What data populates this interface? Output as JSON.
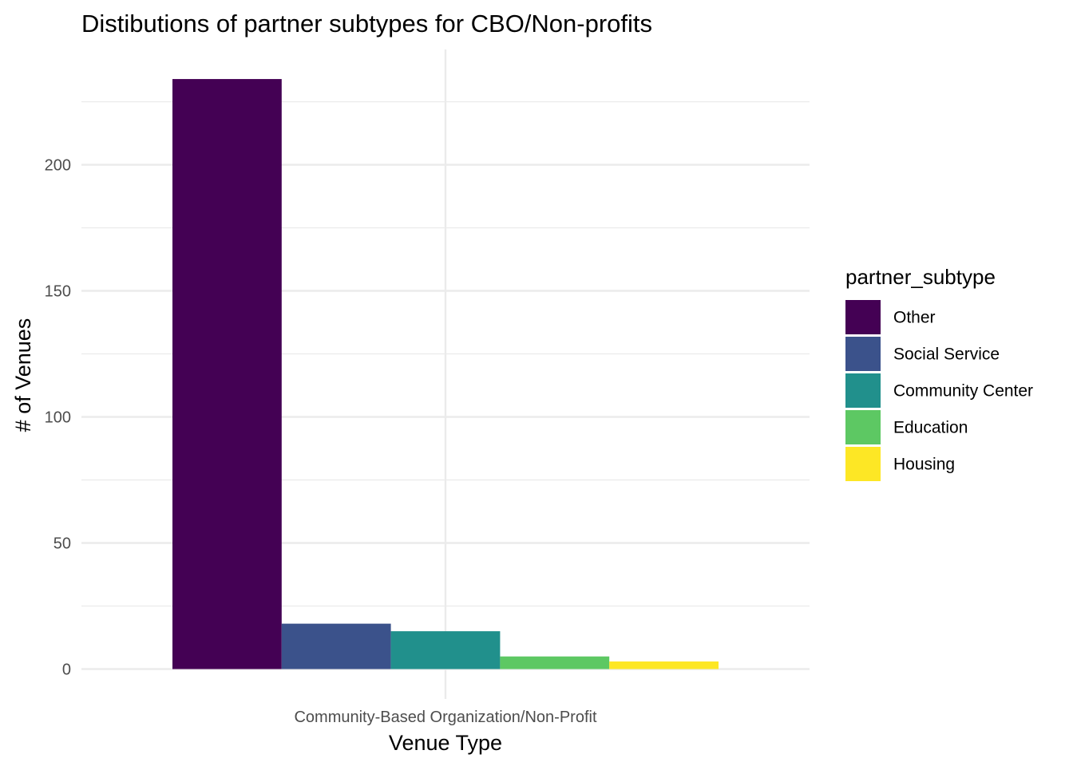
{
  "chart_data": {
    "type": "bar",
    "title": "Distibutions of partner subtypes for CBO/Non-profits",
    "xlabel": "Venue Type",
    "ylabel": "# of Venues",
    "categories": [
      "Community-Based Organization/Non-Profit"
    ],
    "series": [
      {
        "name": "Other",
        "values": [
          234
        ],
        "color": "#440154"
      },
      {
        "name": "Social Service",
        "values": [
          18
        ],
        "color": "#3B528B"
      },
      {
        "name": "Community Center",
        "values": [
          15
        ],
        "color": "#21908C"
      },
      {
        "name": "Education",
        "values": [
          5
        ],
        "color": "#5DC863"
      },
      {
        "name": "Housing",
        "values": [
          3
        ],
        "color": "#FDE725"
      }
    ],
    "ylim": [
      0,
      240
    ],
    "yticks": [
      0,
      50,
      100,
      150,
      200
    ],
    "ytick_labels": [
      "0",
      "50",
      "100",
      "150",
      "200"
    ],
    "grid": true,
    "legend": {
      "title": "partner_subtype",
      "placement": "right"
    },
    "barmode": "dodge"
  }
}
